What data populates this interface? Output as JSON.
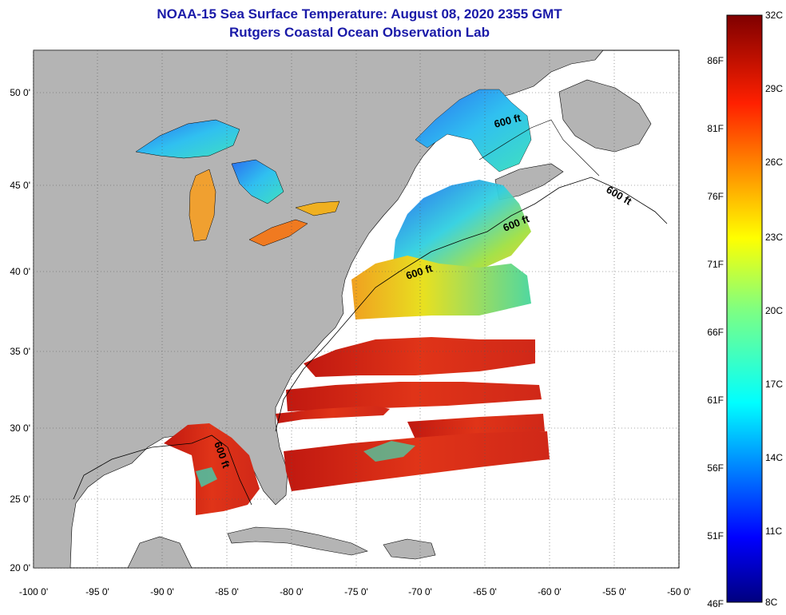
{
  "title": "NOAA-15 Sea Surface Temperature:  August 08, 2020 2355 GMT",
  "subtitle": "Rutgers Coastal Ocean Observation Lab",
  "lon_ticks": [
    "-100 0'",
    "-95 0'",
    "-90 0'",
    "-85 0'",
    "-80 0'",
    "-75 0'",
    "-70 0'",
    "-65 0'",
    "-60 0'",
    "-55 0'",
    "-50 0'"
  ],
  "lat_ticks": [
    "50 0'",
    "45 0'",
    "40 0'",
    "35 0'",
    "30 0'",
    "25 0'",
    "20 0'"
  ],
  "contour_label": "600 ft",
  "colorbar": {
    "celsius": [
      "32C",
      "29C",
      "26C",
      "23C",
      "20C",
      "17C",
      "14C",
      "11C",
      "8C"
    ],
    "fahrenheit": [
      "86F",
      "81F",
      "76F",
      "71F",
      "66F",
      "61F",
      "56F",
      "51F",
      "46F"
    ]
  },
  "colors": {
    "land": "#b4b4b4",
    "title": "#1a1aa8",
    "warm": "#d42a14",
    "cold": "#1030d0"
  }
}
